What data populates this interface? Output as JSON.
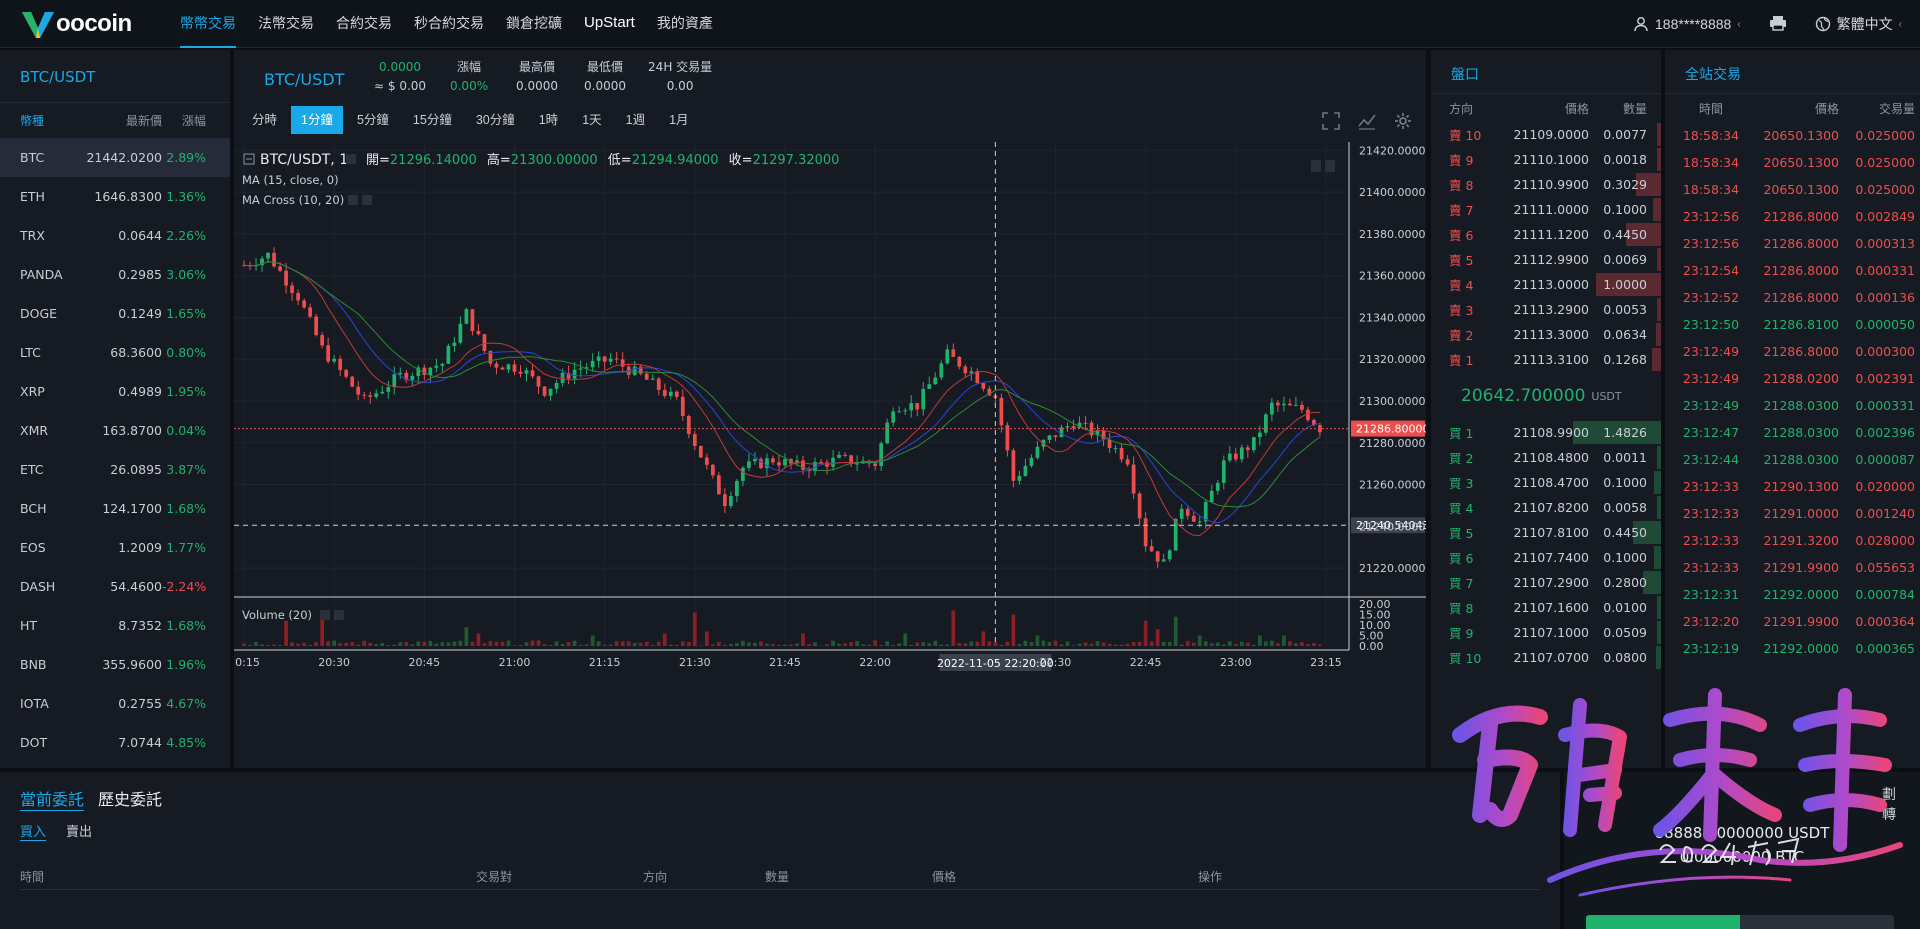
{
  "nav": {
    "logo_word": "oocoin",
    "items": [
      {
        "label": "幣幣交易",
        "active": true
      },
      {
        "label": "法幣交易"
      },
      {
        "label": "合約交易"
      },
      {
        "label": "秒合約交易"
      },
      {
        "label": "鎖倉挖礦"
      },
      {
        "label": "UpStart",
        "bold": true
      },
      {
        "label": "我的資產"
      }
    ],
    "user": "188****8888",
    "language": "繁體中文"
  },
  "market": {
    "title": "BTC/USDT",
    "cols": [
      "幣種",
      "最新價",
      "漲幅"
    ],
    "rows": [
      {
        "coin": "BTC",
        "price": "21442.0200",
        "change": "2.89%",
        "dir": "up",
        "selected": true
      },
      {
        "coin": "ETH",
        "price": "1646.8300",
        "change": "1.36%",
        "dir": "up"
      },
      {
        "coin": "TRX",
        "price": "0.0644",
        "change": "2.26%",
        "dir": "up"
      },
      {
        "coin": "PANDA",
        "price": "0.2985",
        "change": "3.06%",
        "dir": "up"
      },
      {
        "coin": "DOGE",
        "price": "0.1249",
        "change": "1.65%",
        "dir": "up"
      },
      {
        "coin": "LTC",
        "price": "68.3600",
        "change": "0.80%",
        "dir": "up"
      },
      {
        "coin": "XRP",
        "price": "0.4989",
        "change": "1.95%",
        "dir": "up"
      },
      {
        "coin": "XMR",
        "price": "163.8700",
        "change": "0.04%",
        "dir": "up"
      },
      {
        "coin": "ETC",
        "price": "26.0895",
        "change": "3.87%",
        "dir": "up"
      },
      {
        "coin": "BCH",
        "price": "124.1700",
        "change": "1.68%",
        "dir": "up"
      },
      {
        "coin": "EOS",
        "price": "1.2009",
        "change": "1.77%",
        "dir": "up"
      },
      {
        "coin": "DASH",
        "price": "54.4600",
        "change": "-2.24%",
        "dir": "down"
      },
      {
        "coin": "HT",
        "price": "8.7352",
        "change": "1.68%",
        "dir": "up"
      },
      {
        "coin": "BNB",
        "price": "355.9600",
        "change": "1.96%",
        "dir": "up"
      },
      {
        "coin": "IOTA",
        "price": "0.2755",
        "change": "4.67%",
        "dir": "up"
      },
      {
        "coin": "DOT",
        "price": "7.0744",
        "change": "4.85%",
        "dir": "up"
      }
    ]
  },
  "ticker": {
    "symbol": "BTC/USDT",
    "price": "0.0000",
    "price_usd": "≈ $ 0.00",
    "change_label": "漲幅",
    "change": "0.00%",
    "high_label": "最高價",
    "high": "0.0000",
    "low_label": "最低價",
    "low": "0.0000",
    "vol_label": "24H 交易量",
    "vol": "0.00"
  },
  "intervals": [
    {
      "label": "分時"
    },
    {
      "label": "1分鐘",
      "active": true
    },
    {
      "label": "5分鐘"
    },
    {
      "label": "15分鐘"
    },
    {
      "label": "30分鐘"
    },
    {
      "label": "1時"
    },
    {
      "label": "1天"
    },
    {
      "label": "1週"
    },
    {
      "label": "1月"
    }
  ],
  "chart_data": {
    "type": "candlestick",
    "symbol": "BTC/USDT, 1",
    "ohlc_legend": {
      "open_label": "開=",
      "open": "21296.14000",
      "high_label": "高=",
      "high": "21300.00000",
      "low_label": "低=",
      "low": "21294.94000",
      "close_label": "收=",
      "close": "21297.32000"
    },
    "studies": [
      "MA (15, close, 0)",
      "MA Cross (10, 20)"
    ],
    "volume_label": "Volume (20)",
    "price_axis": {
      "range": [
        21210,
        21424
      ],
      "ticks": [
        "21420.00000",
        "21400.00000",
        "21380.00000",
        "21360.00000",
        "21340.00000",
        "21320.00000",
        "21300.00000",
        "21280.00000",
        "21260.00000",
        "21240.00000",
        "21220.00000"
      ],
      "values": [
        21420,
        21400,
        21380,
        21360,
        21340,
        21320,
        21300,
        21280,
        21260,
        21240,
        21220
      ]
    },
    "volume_axis": {
      "range": [
        0,
        21
      ],
      "ticks": [
        "20.00",
        "15.00",
        "10.00",
        "5.00",
        "0.00"
      ],
      "values": [
        20,
        15,
        10,
        5,
        0
      ]
    },
    "time_axis": {
      "ticks": [
        "20:15",
        "20:30",
        "20:45",
        "21:00",
        "21:15",
        "21:30",
        "21:45",
        "22:00",
        "22:30",
        "22:45",
        "23:00",
        "23:15"
      ],
      "minutes": [
        0,
        15,
        30,
        45,
        60,
        75,
        90,
        105,
        135,
        150,
        165,
        180
      ]
    },
    "last_price_label": "21286.80000",
    "last_price": 21286.8,
    "crosshair_price_label": "21240.54043",
    "crosshair_price": 21240.54,
    "crosshair_time_label": "2022-11-05 22:20:00",
    "crosshair_minute": 125,
    "anchors": [
      {
        "m": 0,
        "p": 21365
      },
      {
        "m": 4,
        "p": 21370
      },
      {
        "m": 9,
        "p": 21350
      },
      {
        "m": 13,
        "p": 21325
      },
      {
        "m": 20,
        "p": 21300
      },
      {
        "m": 26,
        "p": 21312
      },
      {
        "m": 33,
        "p": 21318
      },
      {
        "m": 37,
        "p": 21342
      },
      {
        "m": 41,
        "p": 21318
      },
      {
        "m": 46,
        "p": 21316
      },
      {
        "m": 50,
        "p": 21305
      },
      {
        "m": 55,
        "p": 21315
      },
      {
        "m": 61,
        "p": 21320
      },
      {
        "m": 66,
        "p": 21312
      },
      {
        "m": 72,
        "p": 21300
      },
      {
        "m": 75,
        "p": 21280
      },
      {
        "m": 78,
        "p": 21262
      },
      {
        "m": 80,
        "p": 21252
      },
      {
        "m": 83,
        "p": 21268
      },
      {
        "m": 88,
        "p": 21272
      },
      {
        "m": 93,
        "p": 21268
      },
      {
        "m": 99,
        "p": 21272
      },
      {
        "m": 105,
        "p": 21270
      },
      {
        "m": 108,
        "p": 21298
      },
      {
        "m": 112,
        "p": 21298
      },
      {
        "m": 117,
        "p": 21322
      },
      {
        "m": 121,
        "p": 21314
      },
      {
        "m": 125,
        "p": 21302
      },
      {
        "m": 128,
        "p": 21262
      },
      {
        "m": 133,
        "p": 21280
      },
      {
        "m": 138,
        "p": 21290
      },
      {
        "m": 143,
        "p": 21282
      },
      {
        "m": 147,
        "p": 21272
      },
      {
        "m": 150,
        "p": 21232
      },
      {
        "m": 153,
        "p": 21222
      },
      {
        "m": 156,
        "p": 21250
      },
      {
        "m": 159,
        "p": 21242
      },
      {
        "m": 163,
        "p": 21270
      },
      {
        "m": 168,
        "p": 21280
      },
      {
        "m": 171,
        "p": 21298
      },
      {
        "m": 176,
        "p": 21296
      },
      {
        "m": 179,
        "p": 21287
      }
    ],
    "volume_spikes": [
      {
        "m": 7,
        "v": 12
      },
      {
        "m": 13,
        "v": 14
      },
      {
        "m": 37,
        "v": 9
      },
      {
        "m": 39,
        "v": 6
      },
      {
        "m": 58,
        "v": 5
      },
      {
        "m": 70,
        "v": 6
      },
      {
        "m": 75,
        "v": 16
      },
      {
        "m": 77,
        "v": 7
      },
      {
        "m": 93,
        "v": 6
      },
      {
        "m": 110,
        "v": 6
      },
      {
        "m": 118,
        "v": 17
      },
      {
        "m": 123,
        "v": 7
      },
      {
        "m": 128,
        "v": 15
      },
      {
        "m": 132,
        "v": 5
      },
      {
        "m": 150,
        "v": 12
      },
      {
        "m": 152,
        "v": 8
      },
      {
        "m": 155,
        "v": 14
      },
      {
        "m": 159,
        "v": 5
      },
      {
        "m": 169,
        "v": 5
      },
      {
        "m": 173,
        "v": 5
      }
    ]
  },
  "orderbook": {
    "title": "盤口",
    "cols": [
      "方向",
      "價格",
      "數量"
    ],
    "asks": [
      {
        "side": "賣 10",
        "price": "21109.0000",
        "qty": "0.0077",
        "depth": 0.03
      },
      {
        "side": "賣 9",
        "price": "21110.1000",
        "qty": "0.0018",
        "depth": 0.01
      },
      {
        "side": "賣 8",
        "price": "21110.9900",
        "qty": "0.3029",
        "depth": 0.28
      },
      {
        "side": "賣 7",
        "price": "21111.0000",
        "qty": "0.1000",
        "depth": 0.09
      },
      {
        "side": "賣 6",
        "price": "21111.1200",
        "qty": "0.4450",
        "depth": 0.4
      },
      {
        "side": "賣 5",
        "price": "21112.9900",
        "qty": "0.0069",
        "depth": 0.03
      },
      {
        "side": "賣 4",
        "price": "21113.0000",
        "qty": "1.0000",
        "depth": 0.74
      },
      {
        "side": "賣 3",
        "price": "21113.2900",
        "qty": "0.0053",
        "depth": 0.02
      },
      {
        "side": "賣 2",
        "price": "21113.3000",
        "qty": "0.0634",
        "depth": 0.06
      },
      {
        "side": "賣 1",
        "price": "21113.3100",
        "qty": "0.1268",
        "depth": 0.1
      }
    ],
    "last_price": "20642.700000",
    "last_unit": "USDT",
    "bids": [
      {
        "side": "買 1",
        "price": "21108.9900",
        "qty": "1.4826",
        "depth": 1.0
      },
      {
        "side": "買 2",
        "price": "21108.4800",
        "qty": "0.0011",
        "depth": 0.01
      },
      {
        "side": "買 3",
        "price": "21108.4700",
        "qty": "0.1000",
        "depth": 0.08
      },
      {
        "side": "買 4",
        "price": "21107.8200",
        "qty": "0.0058",
        "depth": 0.02
      },
      {
        "side": "買 5",
        "price": "21107.8100",
        "qty": "0.4450",
        "depth": 0.32
      },
      {
        "side": "買 6",
        "price": "21107.7400",
        "qty": "0.1000",
        "depth": 0.08
      },
      {
        "side": "買 7",
        "price": "21107.2900",
        "qty": "0.2800",
        "depth": 0.2
      },
      {
        "side": "買 8",
        "price": "21107.1600",
        "qty": "0.0100",
        "depth": 0.02
      },
      {
        "side": "買 9",
        "price": "21107.1000",
        "qty": "0.0509",
        "depth": 0.04
      },
      {
        "side": "買 10",
        "price": "21107.0700",
        "qty": "0.0800",
        "depth": 0.06
      }
    ]
  },
  "trades": {
    "title": "全站交易",
    "cols": [
      "時間",
      "價格",
      "交易量"
    ],
    "rows": [
      {
        "time": "18:58:34",
        "price": "20650.1300",
        "qty": "0.025000",
        "dir": "down"
      },
      {
        "time": "18:58:34",
        "price": "20650.1300",
        "qty": "0.025000",
        "dir": "down"
      },
      {
        "time": "18:58:34",
        "price": "20650.1300",
        "qty": "0.025000",
        "dir": "down"
      },
      {
        "time": "23:12:56",
        "price": "21286.8000",
        "qty": "0.002849",
        "dir": "down"
      },
      {
        "time": "23:12:56",
        "price": "21286.8000",
        "qty": "0.000313",
        "dir": "down"
      },
      {
        "time": "23:12:54",
        "price": "21286.8000",
        "qty": "0.000331",
        "dir": "down"
      },
      {
        "time": "23:12:52",
        "price": "21286.8000",
        "qty": "0.000136",
        "dir": "down"
      },
      {
        "time": "23:12:50",
        "price": "21286.8100",
        "qty": "0.000050",
        "dir": "up"
      },
      {
        "time": "23:12:49",
        "price": "21286.8000",
        "qty": "0.000300",
        "dir": "down"
      },
      {
        "time": "23:12:49",
        "price": "21288.0200",
        "qty": "0.002391",
        "dir": "down"
      },
      {
        "time": "23:12:49",
        "price": "21288.0300",
        "qty": "0.000331",
        "dir": "up"
      },
      {
        "time": "23:12:47",
        "price": "21288.0300",
        "qty": "0.002396",
        "dir": "up"
      },
      {
        "time": "23:12:44",
        "price": "21288.0300",
        "qty": "0.000087",
        "dir": "up"
      },
      {
        "time": "23:12:33",
        "price": "21290.1300",
        "qty": "0.020000",
        "dir": "down"
      },
      {
        "time": "23:12:33",
        "price": "21291.0000",
        "qty": "0.001240",
        "dir": "down"
      },
      {
        "time": "23:12:33",
        "price": "21291.3200",
        "qty": "0.028000",
        "dir": "down"
      },
      {
        "time": "23:12:33",
        "price": "21291.9900",
        "qty": "0.055653",
        "dir": "down"
      },
      {
        "time": "23:12:31",
        "price": "21292.0000",
        "qty": "0.000784",
        "dir": "up"
      },
      {
        "time": "23:12:20",
        "price": "21291.9900",
        "qty": "0.000364",
        "dir": "down"
      },
      {
        "time": "23:12:19",
        "price": "21292.0000",
        "qty": "0.000365",
        "dir": "up"
      }
    ]
  },
  "orders": {
    "tabs": [
      {
        "label": "當前委託",
        "active": true
      },
      {
        "label": "歷史委託"
      }
    ],
    "subtabs": [
      {
        "label": "買入",
        "active": true
      },
      {
        "label": "賣出"
      }
    ],
    "cols": [
      "時間",
      "交易對",
      "方向",
      "數量",
      "價格",
      "操作"
    ]
  },
  "wallet": {
    "tab_right": "劃轉",
    "usdt_balance": "88888.00000000 USDT",
    "btc_balance": "0.00000000 BTC"
  },
  "colors": {
    "up": "#20b26c",
    "down": "#ec4e4e",
    "accent": "#1aa9e8"
  }
}
